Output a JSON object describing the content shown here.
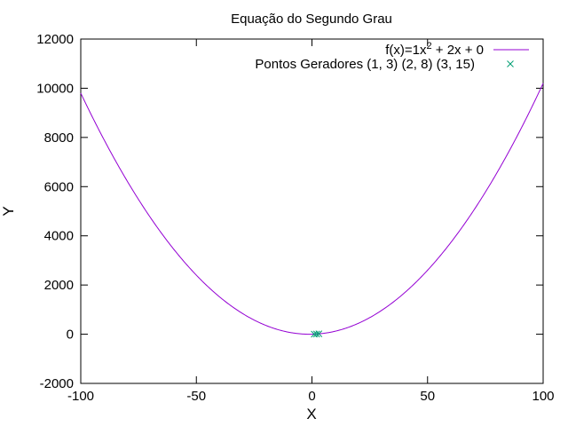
{
  "chart_data": {
    "type": "line",
    "title": "Equação do Segundo Grau",
    "xlabel": "X",
    "ylabel": "Y",
    "xlim": [
      -100,
      100
    ],
    "ylim": [
      -2000,
      12000
    ],
    "xticks": [
      -100,
      -50,
      0,
      50,
      100
    ],
    "yticks": [
      -2000,
      0,
      2000,
      4000,
      6000,
      8000,
      10000,
      12000
    ],
    "grid": false,
    "legend_position": "top-right",
    "series": [
      {
        "name_prefix": "f(x)=1x",
        "name_superscript": "2",
        "name_suffix": " + 2x + 0",
        "kind": "function",
        "coefficients": {
          "a": 1,
          "b": 2,
          "c": 0
        },
        "color": "#9400d3"
      },
      {
        "name": "Pontos Geradores (1, 3) (2, 8) (3, 15)",
        "kind": "points",
        "marker": "x",
        "color": "#009e73",
        "points": [
          {
            "x": 1,
            "y": 3
          },
          {
            "x": 2,
            "y": 8
          },
          {
            "x": 3,
            "y": 15
          }
        ]
      }
    ]
  }
}
